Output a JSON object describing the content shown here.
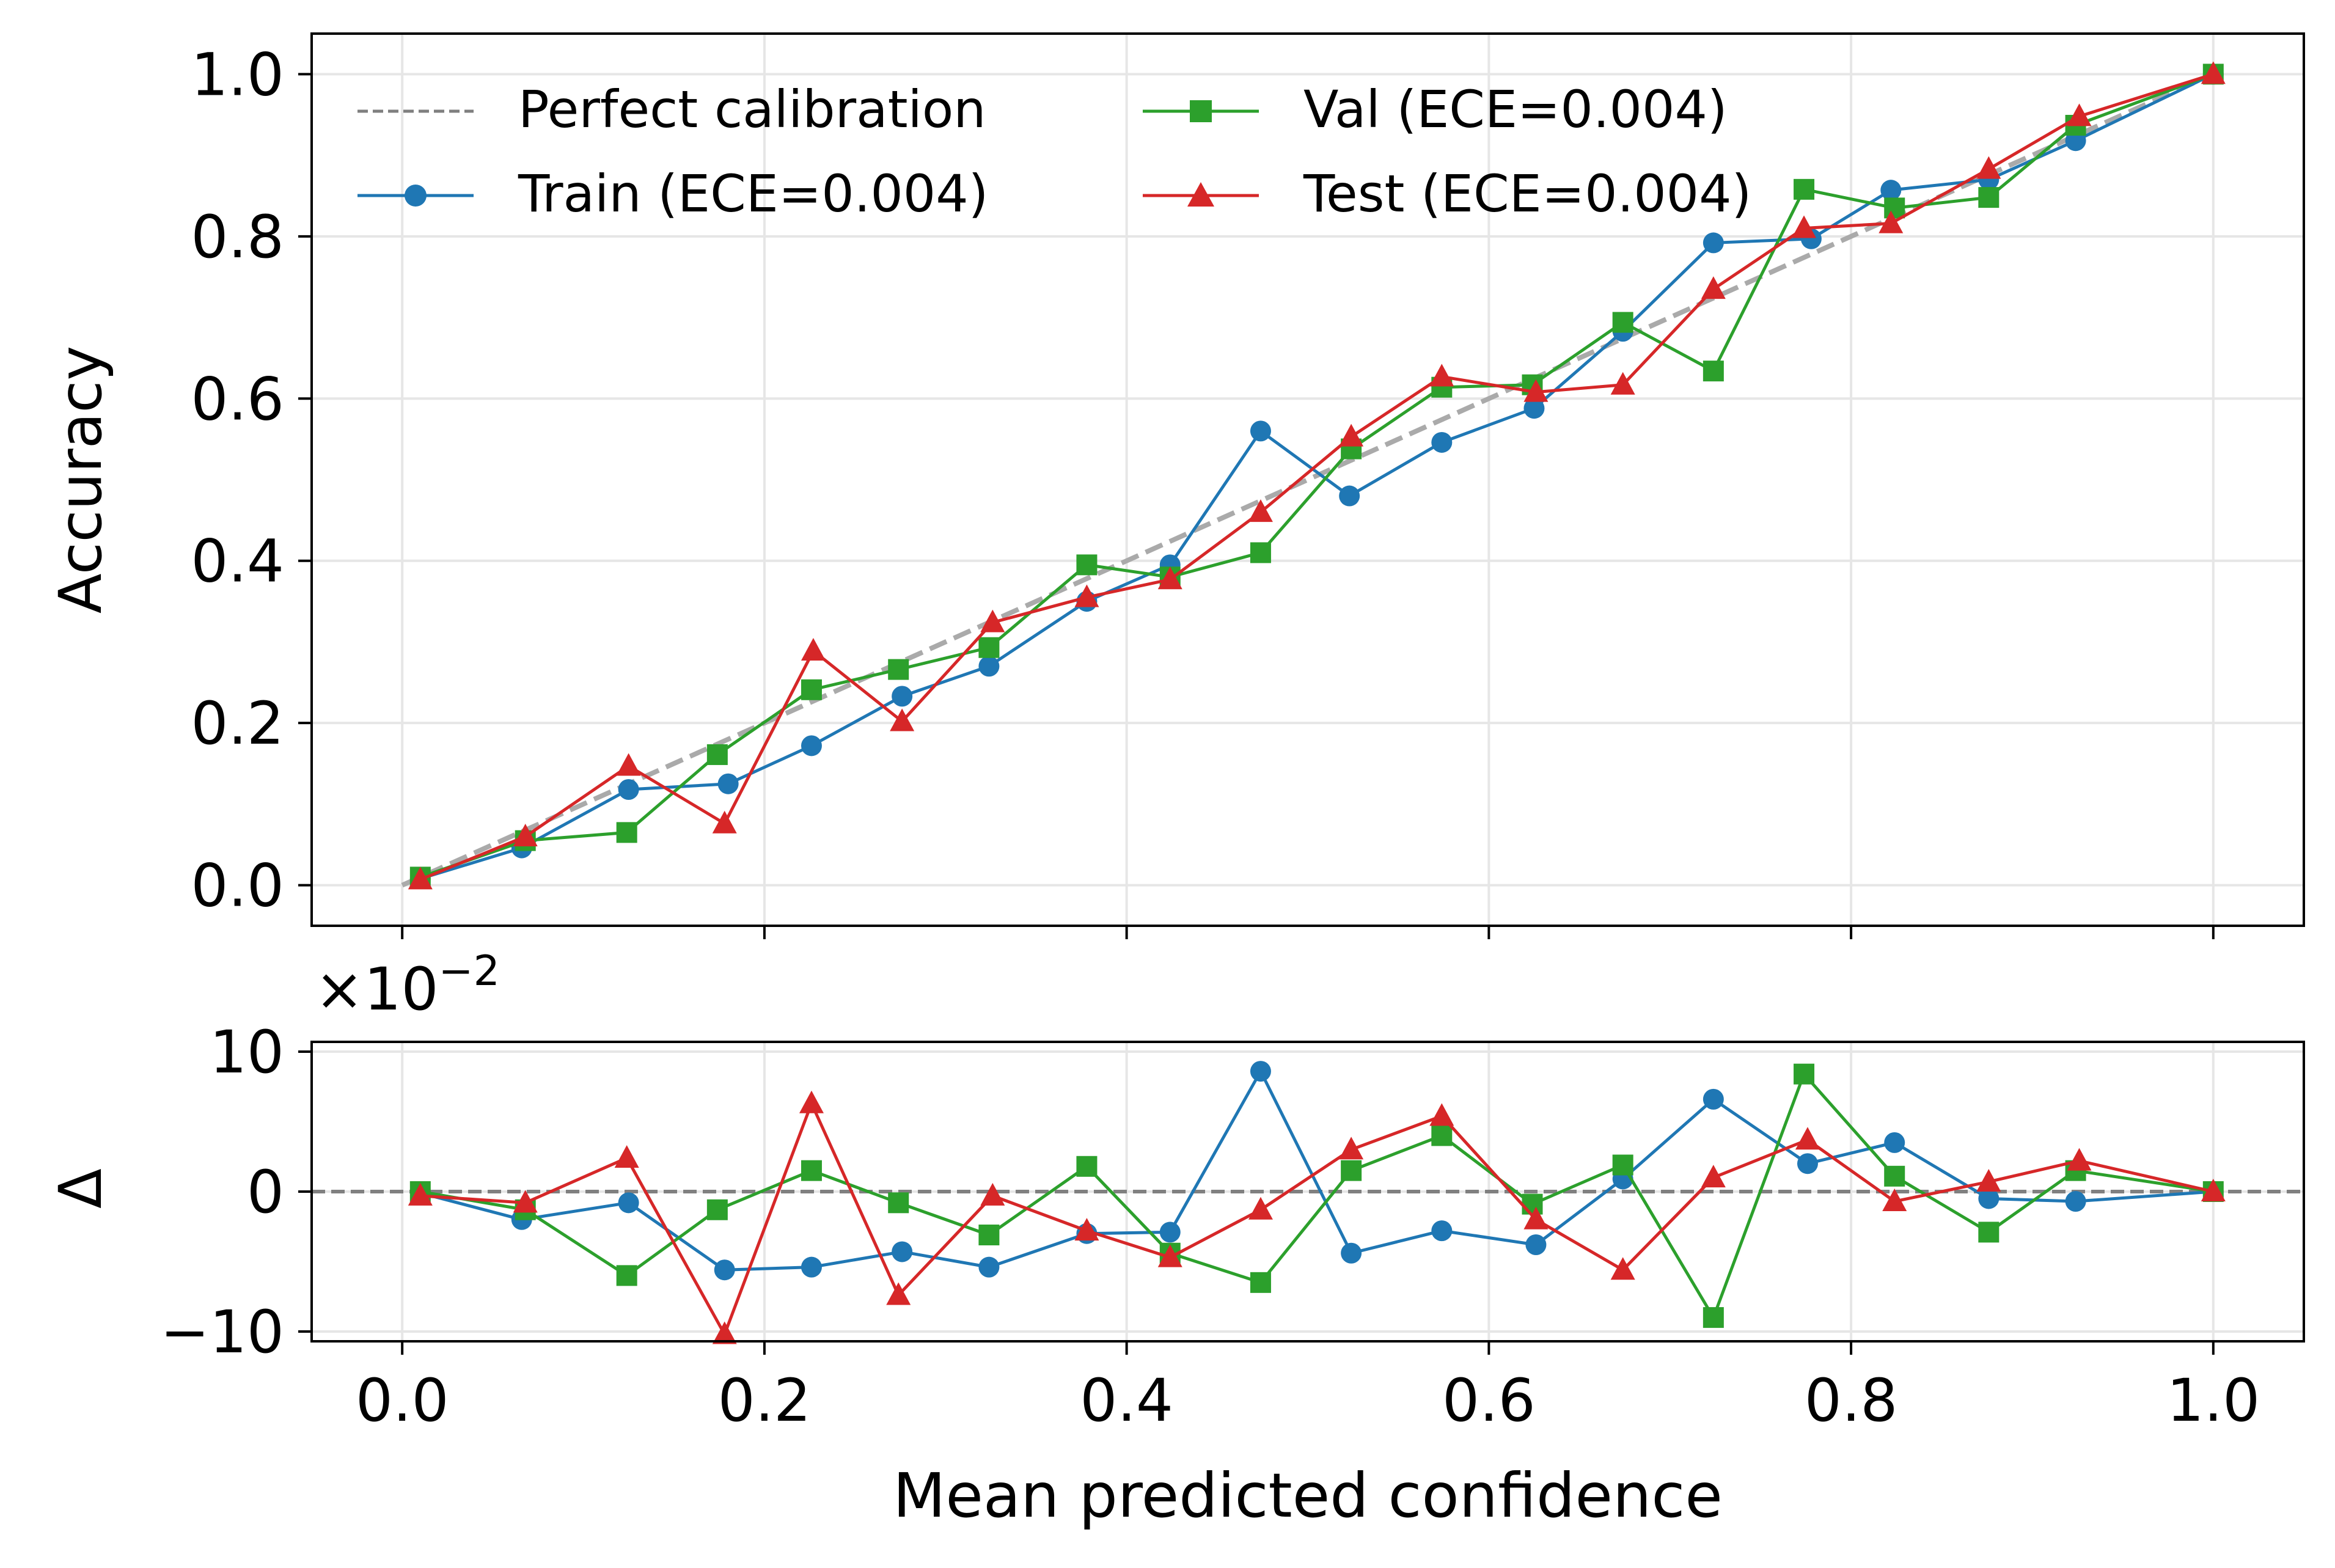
{
  "chart_data": [
    {
      "type": "line",
      "panel": "calibration",
      "ylabel": "Accuracy",
      "xlim": [
        -0.05,
        1.05
      ],
      "ylim": [
        -0.05,
        1.05
      ],
      "x_ticks": [
        "0.0",
        "0.2",
        "0.4",
        "0.6",
        "0.8",
        "1.0"
      ],
      "y_ticks": [
        "0.0",
        "0.2",
        "0.4",
        "0.6",
        "0.8",
        "1.0"
      ],
      "grid": true,
      "legend_position": "top-left",
      "legend_columns": 2,
      "reference_line": {
        "name": "Perfect calibration",
        "from": [
          0,
          0
        ],
        "to": [
          1,
          1
        ],
        "color": "#999999",
        "style": "dashed"
      },
      "series": [
        {
          "name": "Train (ECE=0.004)",
          "color": "#1f77b4",
          "marker": "circle",
          "x": [
            0.01,
            0.066,
            0.125,
            0.18,
            0.226,
            0.276,
            0.324,
            0.378,
            0.424,
            0.474,
            0.523,
            0.574,
            0.625,
            0.674,
            0.724,
            0.778,
            0.822,
            0.876,
            0.924,
            1.0
          ],
          "y": [
            0.008,
            0.046,
            0.118,
            0.125,
            0.172,
            0.233,
            0.27,
            0.35,
            0.395,
            0.56,
            0.48,
            0.546,
            0.588,
            0.683,
            0.792,
            0.797,
            0.857,
            0.87,
            0.918,
            1.0
          ]
        },
        {
          "name": "Val (ECE=0.004)",
          "color": "#2ca02c",
          "marker": "square",
          "x": [
            0.01,
            0.068,
            0.124,
            0.174,
            0.226,
            0.274,
            0.324,
            0.378,
            0.424,
            0.474,
            0.524,
            0.574,
            0.624,
            0.674,
            0.724,
            0.774,
            0.824,
            0.876,
            0.924,
            1.0
          ],
          "y": [
            0.01,
            0.055,
            0.065,
            0.161,
            0.241,
            0.266,
            0.293,
            0.395,
            0.38,
            0.41,
            0.538,
            0.614,
            0.617,
            0.694,
            0.634,
            0.858,
            0.835,
            0.848,
            0.937,
            1.0
          ]
        },
        {
          "name": "Test (ECE=0.004)",
          "color": "#d62728",
          "marker": "triangle",
          "x": [
            0.01,
            0.068,
            0.125,
            0.178,
            0.227,
            0.276,
            0.326,
            0.378,
            0.424,
            0.474,
            0.524,
            0.574,
            0.626,
            0.674,
            0.724,
            0.774,
            0.822,
            0.876,
            0.926,
            1.0
          ],
          "y": [
            0.007,
            0.06,
            0.147,
            0.076,
            0.289,
            0.202,
            0.324,
            0.355,
            0.377,
            0.46,
            0.553,
            0.627,
            0.608,
            0.617,
            0.735,
            0.81,
            0.816,
            0.883,
            0.948,
            1.0
          ]
        }
      ]
    },
    {
      "type": "line",
      "panel": "residual",
      "xlabel": "Mean predicted confidence",
      "ylabel": "Δ",
      "y_scale_note": "×10",
      "y_scale_exponent": "−2",
      "xlim": [
        -0.05,
        1.05
      ],
      "ylim": [
        -10.7,
        10.7
      ],
      "x_ticks": [
        "0.0",
        "0.2",
        "0.4",
        "0.6",
        "0.8",
        "1.0"
      ],
      "y_ticks": [
        "−10",
        "0",
        "10"
      ],
      "grid": true,
      "zero_line": {
        "value": 0,
        "color": "#808080",
        "style": "dashed"
      },
      "series": [
        {
          "name": "Train (ECE=0.004)",
          "color": "#1f77b4",
          "marker": "circle",
          "x": [
            0.01,
            0.066,
            0.125,
            0.178,
            0.226,
            0.276,
            0.324,
            0.378,
            0.424,
            0.474,
            0.524,
            0.574,
            0.626,
            0.674,
            0.724,
            0.776,
            0.824,
            0.876,
            0.924,
            1.0
          ],
          "y": [
            -0.1,
            -2.0,
            -0.8,
            -5.6,
            -5.4,
            -4.3,
            -5.4,
            -3.0,
            -2.9,
            8.6,
            -4.4,
            -2.8,
            -3.8,
            0.9,
            6.6,
            2.0,
            3.5,
            -0.5,
            -0.7,
            0.0
          ]
        },
        {
          "name": "Val (ECE=0.004)",
          "color": "#2ca02c",
          "marker": "square",
          "x": [
            0.01,
            0.068,
            0.124,
            0.174,
            0.226,
            0.274,
            0.324,
            0.378,
            0.424,
            0.474,
            0.524,
            0.574,
            0.624,
            0.674,
            0.724,
            0.774,
            0.824,
            0.876,
            0.924,
            1.0
          ],
          "y": [
            0.0,
            -1.3,
            -6.0,
            -1.3,
            1.5,
            -0.8,
            -3.1,
            1.8,
            -4.4,
            -6.5,
            1.5,
            4.0,
            -0.9,
            1.9,
            -9.0,
            8.4,
            1.1,
            -2.9,
            1.5,
            0.0
          ]
        },
        {
          "name": "Test (ECE=0.004)",
          "color": "#d62728",
          "marker": "triangle",
          "x": [
            0.01,
            0.068,
            0.124,
            0.178,
            0.226,
            0.274,
            0.326,
            0.378,
            0.424,
            0.474,
            0.524,
            0.574,
            0.626,
            0.674,
            0.724,
            0.776,
            0.824,
            0.876,
            0.926,
            1.0
          ],
          "y": [
            -0.3,
            -0.8,
            2.4,
            -10.2,
            6.3,
            -7.4,
            -0.3,
            -2.8,
            -4.7,
            -1.3,
            3.0,
            5.4,
            -2.0,
            -5.6,
            1.0,
            3.7,
            -0.7,
            0.7,
            2.2,
            0.0
          ]
        }
      ]
    }
  ]
}
